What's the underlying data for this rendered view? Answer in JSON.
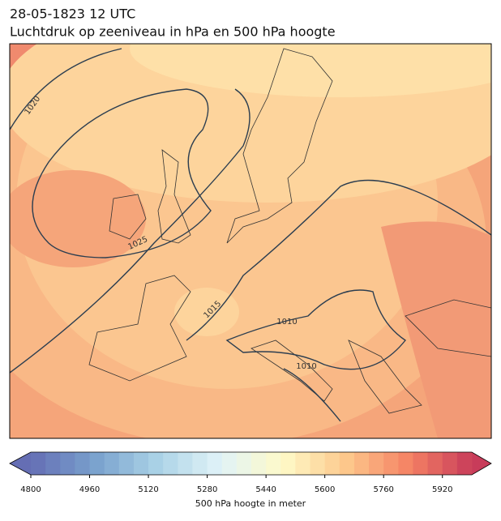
{
  "header": {
    "title": "28-05-1823 12 UTC",
    "subtitle": "Luchtdruk op zeeniveau in hPa en 500 hPa hoogte"
  },
  "map": {
    "contour_labels": [
      "1020",
      "1025",
      "1015",
      "1010",
      "1010"
    ]
  },
  "colorbar": {
    "range": [
      4800,
      6000
    ],
    "ticks": [
      4800,
      4960,
      5120,
      5280,
      5440,
      5600,
      5760,
      5920
    ],
    "label": "500 hPa hoogte in meter"
  }
}
